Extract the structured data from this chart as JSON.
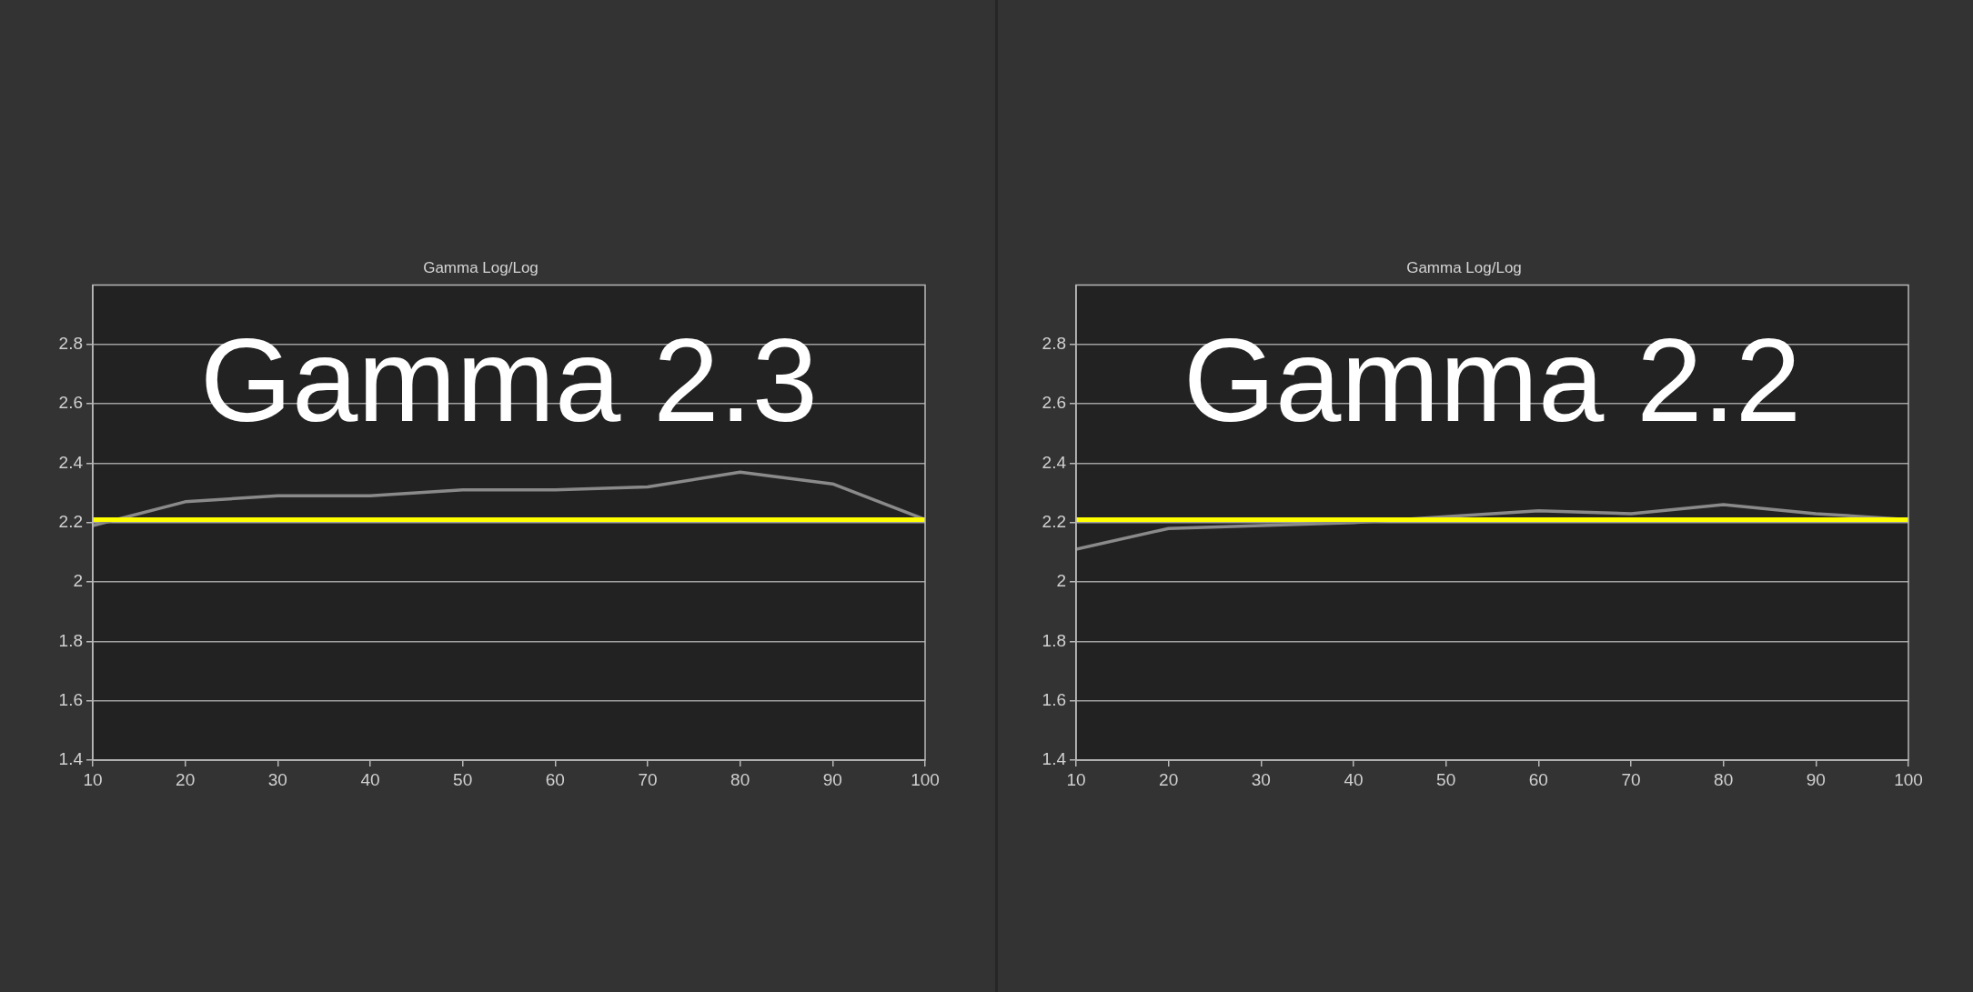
{
  "chart_data": [
    {
      "type": "line",
      "title": "Gamma Log/Log",
      "annotations": [
        "Gamma 2.3"
      ],
      "x": [
        10,
        20,
        30,
        40,
        50,
        60,
        70,
        80,
        90,
        100
      ],
      "series": [
        {
          "color": "#8a8a8a",
          "values": [
            2.19,
            2.27,
            2.29,
            2.29,
            2.31,
            2.31,
            2.32,
            2.37,
            2.33,
            2.21
          ]
        }
      ],
      "ref_lines": [
        {
          "axis": "y",
          "value": 2.21,
          "color": "#ffff00"
        }
      ],
      "xlim": [
        10,
        100
      ],
      "xticks": [
        10,
        20,
        30,
        40,
        50,
        60,
        70,
        80,
        90,
        100
      ],
      "ylim": [
        1.4,
        3.0
      ],
      "yticks": [
        1.4,
        1.6,
        1.8,
        2,
        2.2,
        2.4,
        2.6,
        2.8
      ],
      "grid": "y",
      "legend": false,
      "marker": "none"
    },
    {
      "type": "line",
      "title": "Gamma Log/Log",
      "annotations": [
        "Gamma 2.2"
      ],
      "x": [
        10,
        20,
        30,
        40,
        50,
        60,
        70,
        80,
        90,
        100
      ],
      "series": [
        {
          "color": "#8a8a8a",
          "values": [
            2.11,
            2.18,
            2.19,
            2.2,
            2.22,
            2.24,
            2.23,
            2.26,
            2.23,
            2.21
          ]
        }
      ],
      "ref_lines": [
        {
          "axis": "y",
          "value": 2.21,
          "color": "#ffff00"
        }
      ],
      "xlim": [
        10,
        100
      ],
      "xticks": [
        10,
        20,
        30,
        40,
        50,
        60,
        70,
        80,
        90,
        100
      ],
      "ylim": [
        1.4,
        3.0
      ],
      "yticks": [
        1.4,
        1.6,
        1.8,
        2,
        2.2,
        2.4,
        2.6,
        2.8
      ],
      "grid": "y",
      "legend": false,
      "marker": "none"
    }
  ]
}
